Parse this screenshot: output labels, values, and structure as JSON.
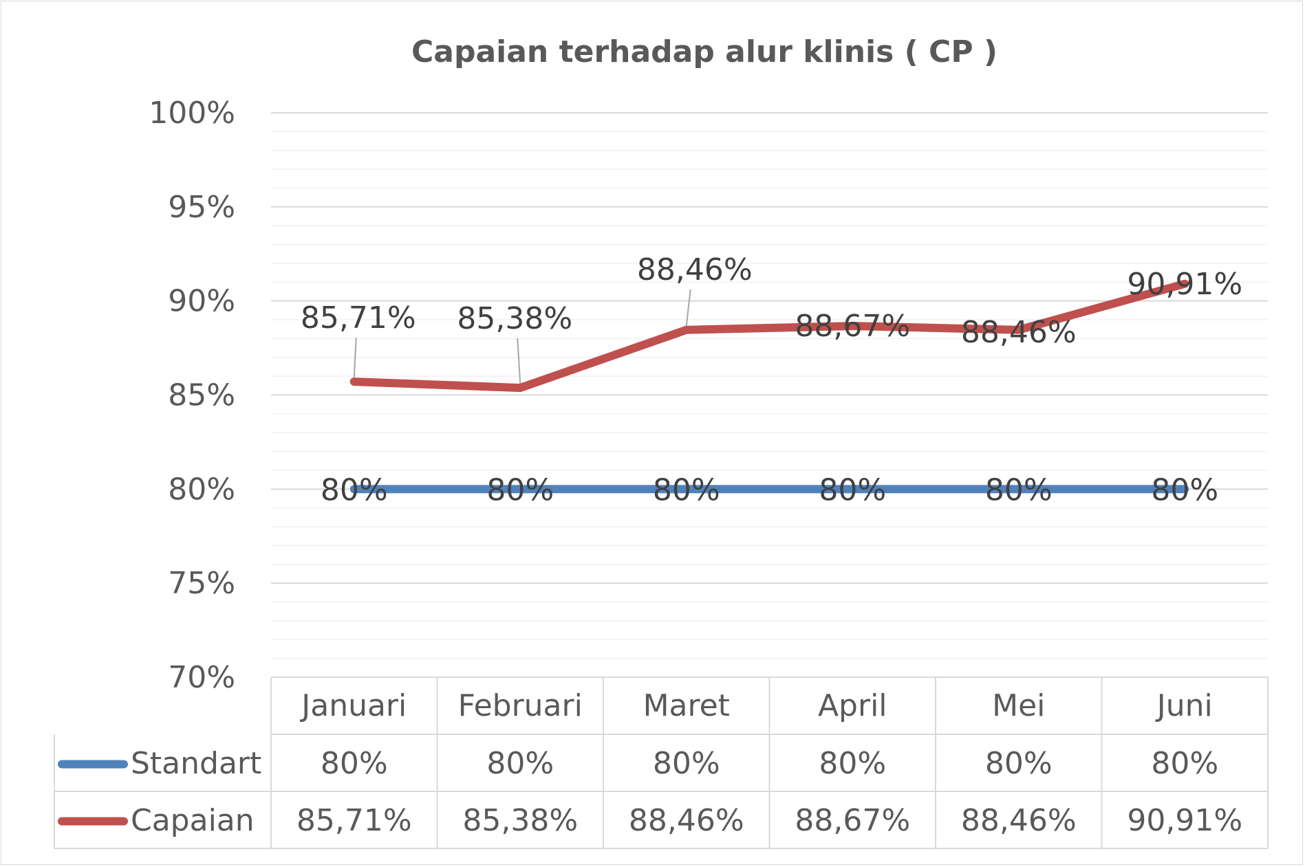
{
  "chart_data": {
    "type": "line",
    "title": "Capaian terhadap alur klinis ( CP )",
    "categories": [
      "Januari",
      "Februari",
      "Maret",
      "April",
      "Mei",
      "Juni"
    ],
    "series": [
      {
        "name": "Standart",
        "color": "#4f81bd",
        "values": [
          80,
          80,
          80,
          80,
          80,
          80
        ],
        "labels": [
          "80%",
          "80%",
          "80%",
          "80%",
          "80%",
          "80%"
        ]
      },
      {
        "name": "Capaian",
        "color": "#c0504d",
        "values": [
          85.71,
          85.38,
          88.46,
          88.67,
          88.46,
          90.91
        ],
        "labels": [
          "85,71%",
          "85,38%",
          "88,46%",
          "88,67%",
          "88,46%",
          "90,91%"
        ]
      }
    ],
    "ylim": [
      70,
      100
    ],
    "ytick_values": [
      70,
      75,
      80,
      85,
      90,
      95,
      100
    ],
    "ytick_labels": [
      "70%",
      "75%",
      "80%",
      "85%",
      "90%",
      "95%",
      "100%"
    ],
    "grid": true,
    "data_table": true,
    "legend": "data-table"
  }
}
